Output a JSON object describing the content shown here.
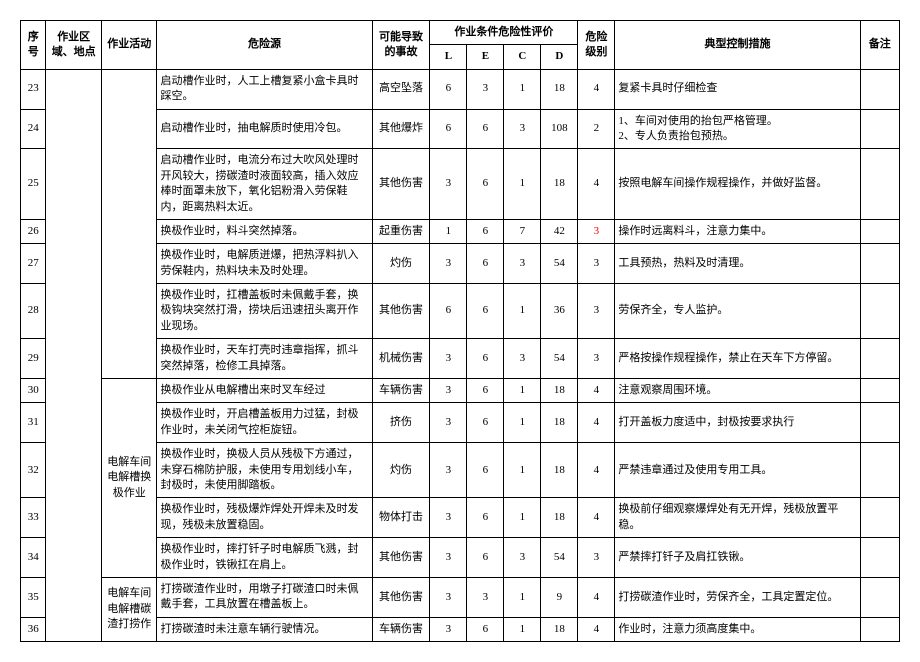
{
  "header": {
    "seq": "序号",
    "area": "作业区域、地点",
    "activity": "作业活动",
    "source": "危险源",
    "accident": "可能导致的事故",
    "eval_group": "作业条件危险性评价",
    "L": "L",
    "E": "E",
    "C": "C",
    "D": "D",
    "level": "危险级别",
    "control": "典型控制措施",
    "remark": "备注"
  },
  "rows": [
    {
      "seq": "23",
      "area": "",
      "activity": "",
      "source": "启动槽作业时，人工上槽复紧小盒卡具时踩空。",
      "accident": "高空坠落",
      "L": "6",
      "E": "3",
      "C": "1",
      "D": "18",
      "level": "4",
      "control": "复紧卡具时仔细检查"
    },
    {
      "seq": "24",
      "area": "",
      "activity": "",
      "source": "启动槽作业时，抽电解质时使用冷包。",
      "accident": "其他爆炸",
      "L": "6",
      "E": "6",
      "C": "3",
      "D": "108",
      "level": "2",
      "control": "1、车间对使用的抬包严格管理。\n2、专人负责抬包预热。"
    },
    {
      "seq": "25",
      "area": "",
      "activity": "",
      "source": "启动槽作业时，电流分布过大吹风处理时开风较大，捞碳渣时液面较高，插入效应棒时面罩未放下，氧化铝粉滑入劳保鞋内，距离热料太近。",
      "accident": "其他伤害",
      "L": "3",
      "E": "6",
      "C": "1",
      "D": "18",
      "level": "4",
      "control": "按照电解车间操作规程操作，并做好监督。"
    },
    {
      "seq": "26",
      "area": "",
      "activity": "",
      "source": "换极作业时，料斗突然掉落。",
      "accident": "起重伤害",
      "L": "1",
      "E": "6",
      "C": "7",
      "D": "42",
      "level": "3",
      "level_red": true,
      "control": "操作时远离料斗，注意力集中。"
    },
    {
      "seq": "27",
      "area": "",
      "activity": "",
      "source": "换极作业时，电解质迸爆，把热浮料扒入劳保鞋内，热料块未及时处理。",
      "accident": "灼伤",
      "L": "3",
      "E": "6",
      "C": "3",
      "D": "54",
      "level": "3",
      "control": "工具预热，热料及时清理。"
    },
    {
      "seq": "28",
      "area": "",
      "activity": "",
      "source": "换极作业时，扛槽盖板时未佩戴手套，换极钩块突然打滑，捞块后迅速扭头离开作业现场。",
      "accident": "其他伤害",
      "L": "6",
      "E": "6",
      "C": "1",
      "D": "36",
      "level": "3",
      "control": "劳保齐全，专人监护。"
    },
    {
      "seq": "29",
      "area": "",
      "activity": "",
      "source": "换极作业时，天车打壳时违章指挥，抓斗突然掉落，检修工具掉落。",
      "accident": "机械伤害",
      "L": "3",
      "E": "6",
      "C": "3",
      "D": "54",
      "level": "3",
      "control": "严格按操作规程操作，禁止在天车下方停留。"
    },
    {
      "seq": "30",
      "area": "",
      "activity": "电解车间电解槽换极作业",
      "source": "换极作业从电解槽出来时叉车经过",
      "accident": "车辆伤害",
      "L": "3",
      "E": "6",
      "C": "1",
      "D": "18",
      "level": "4",
      "control": "注意观察周围环境。"
    },
    {
      "seq": "31",
      "area": "",
      "activity": "",
      "source": "换极作业时，开启槽盖板用力过猛，封极作业时，未关闭气控柜旋钮。",
      "accident": "挤伤",
      "L": "3",
      "E": "6",
      "C": "1",
      "D": "18",
      "level": "4",
      "control": "打开盖板力度适中，封极按要求执行"
    },
    {
      "seq": "32",
      "area": "",
      "activity": "",
      "source": "换极作业时，换极人员从残极下方通过，未穿石棉防护服，未使用专用划线小车，封极时，未使用脚踏板。",
      "accident": "灼伤",
      "L": "3",
      "E": "6",
      "C": "1",
      "D": "18",
      "level": "4",
      "control": "严禁违章通过及使用专用工具。"
    },
    {
      "seq": "33",
      "area": "",
      "activity": "",
      "source": "换极作业时，残极爆炸焊处开焊未及时发现，残极未放置稳固。",
      "accident": "物体打击",
      "L": "3",
      "E": "6",
      "C": "1",
      "D": "18",
      "level": "4",
      "control": "换极前仔细观察爆焊处有无开焊，残极放置平稳。"
    },
    {
      "seq": "34",
      "area": "",
      "activity": "",
      "source": "换极作业时，摔打钎子时电解质飞溅，封极作业时，铁锹扛在肩上。",
      "accident": "其他伤害",
      "L": "3",
      "E": "6",
      "C": "3",
      "D": "54",
      "level": "3",
      "control": "严禁摔打钎子及肩扛铁锹。"
    },
    {
      "seq": "35",
      "area": "",
      "activity": "电解车间电解槽碳渣打捞作",
      "source": "打捞碳渣作业时，用墩子打碳渣口时未佩戴手套，工具放置在槽盖板上。",
      "accident": "其他伤害",
      "L": "3",
      "E": "3",
      "C": "1",
      "D": "9",
      "level": "4",
      "control": "打捞碳渣作业时，劳保齐全，工具定置定位。"
    },
    {
      "seq": "36",
      "area": "",
      "activity": "",
      "source": "打捞碳渣时未注意车辆行驶情况。",
      "accident": "车辆伤害",
      "L": "3",
      "E": "6",
      "C": "1",
      "D": "18",
      "level": "4",
      "control": "作业时，注意力须高度集中。"
    }
  ],
  "spans": {
    "activity1": {
      "start": 7,
      "len": 9
    },
    "activity2": {
      "start": 12,
      "len": 2
    }
  }
}
